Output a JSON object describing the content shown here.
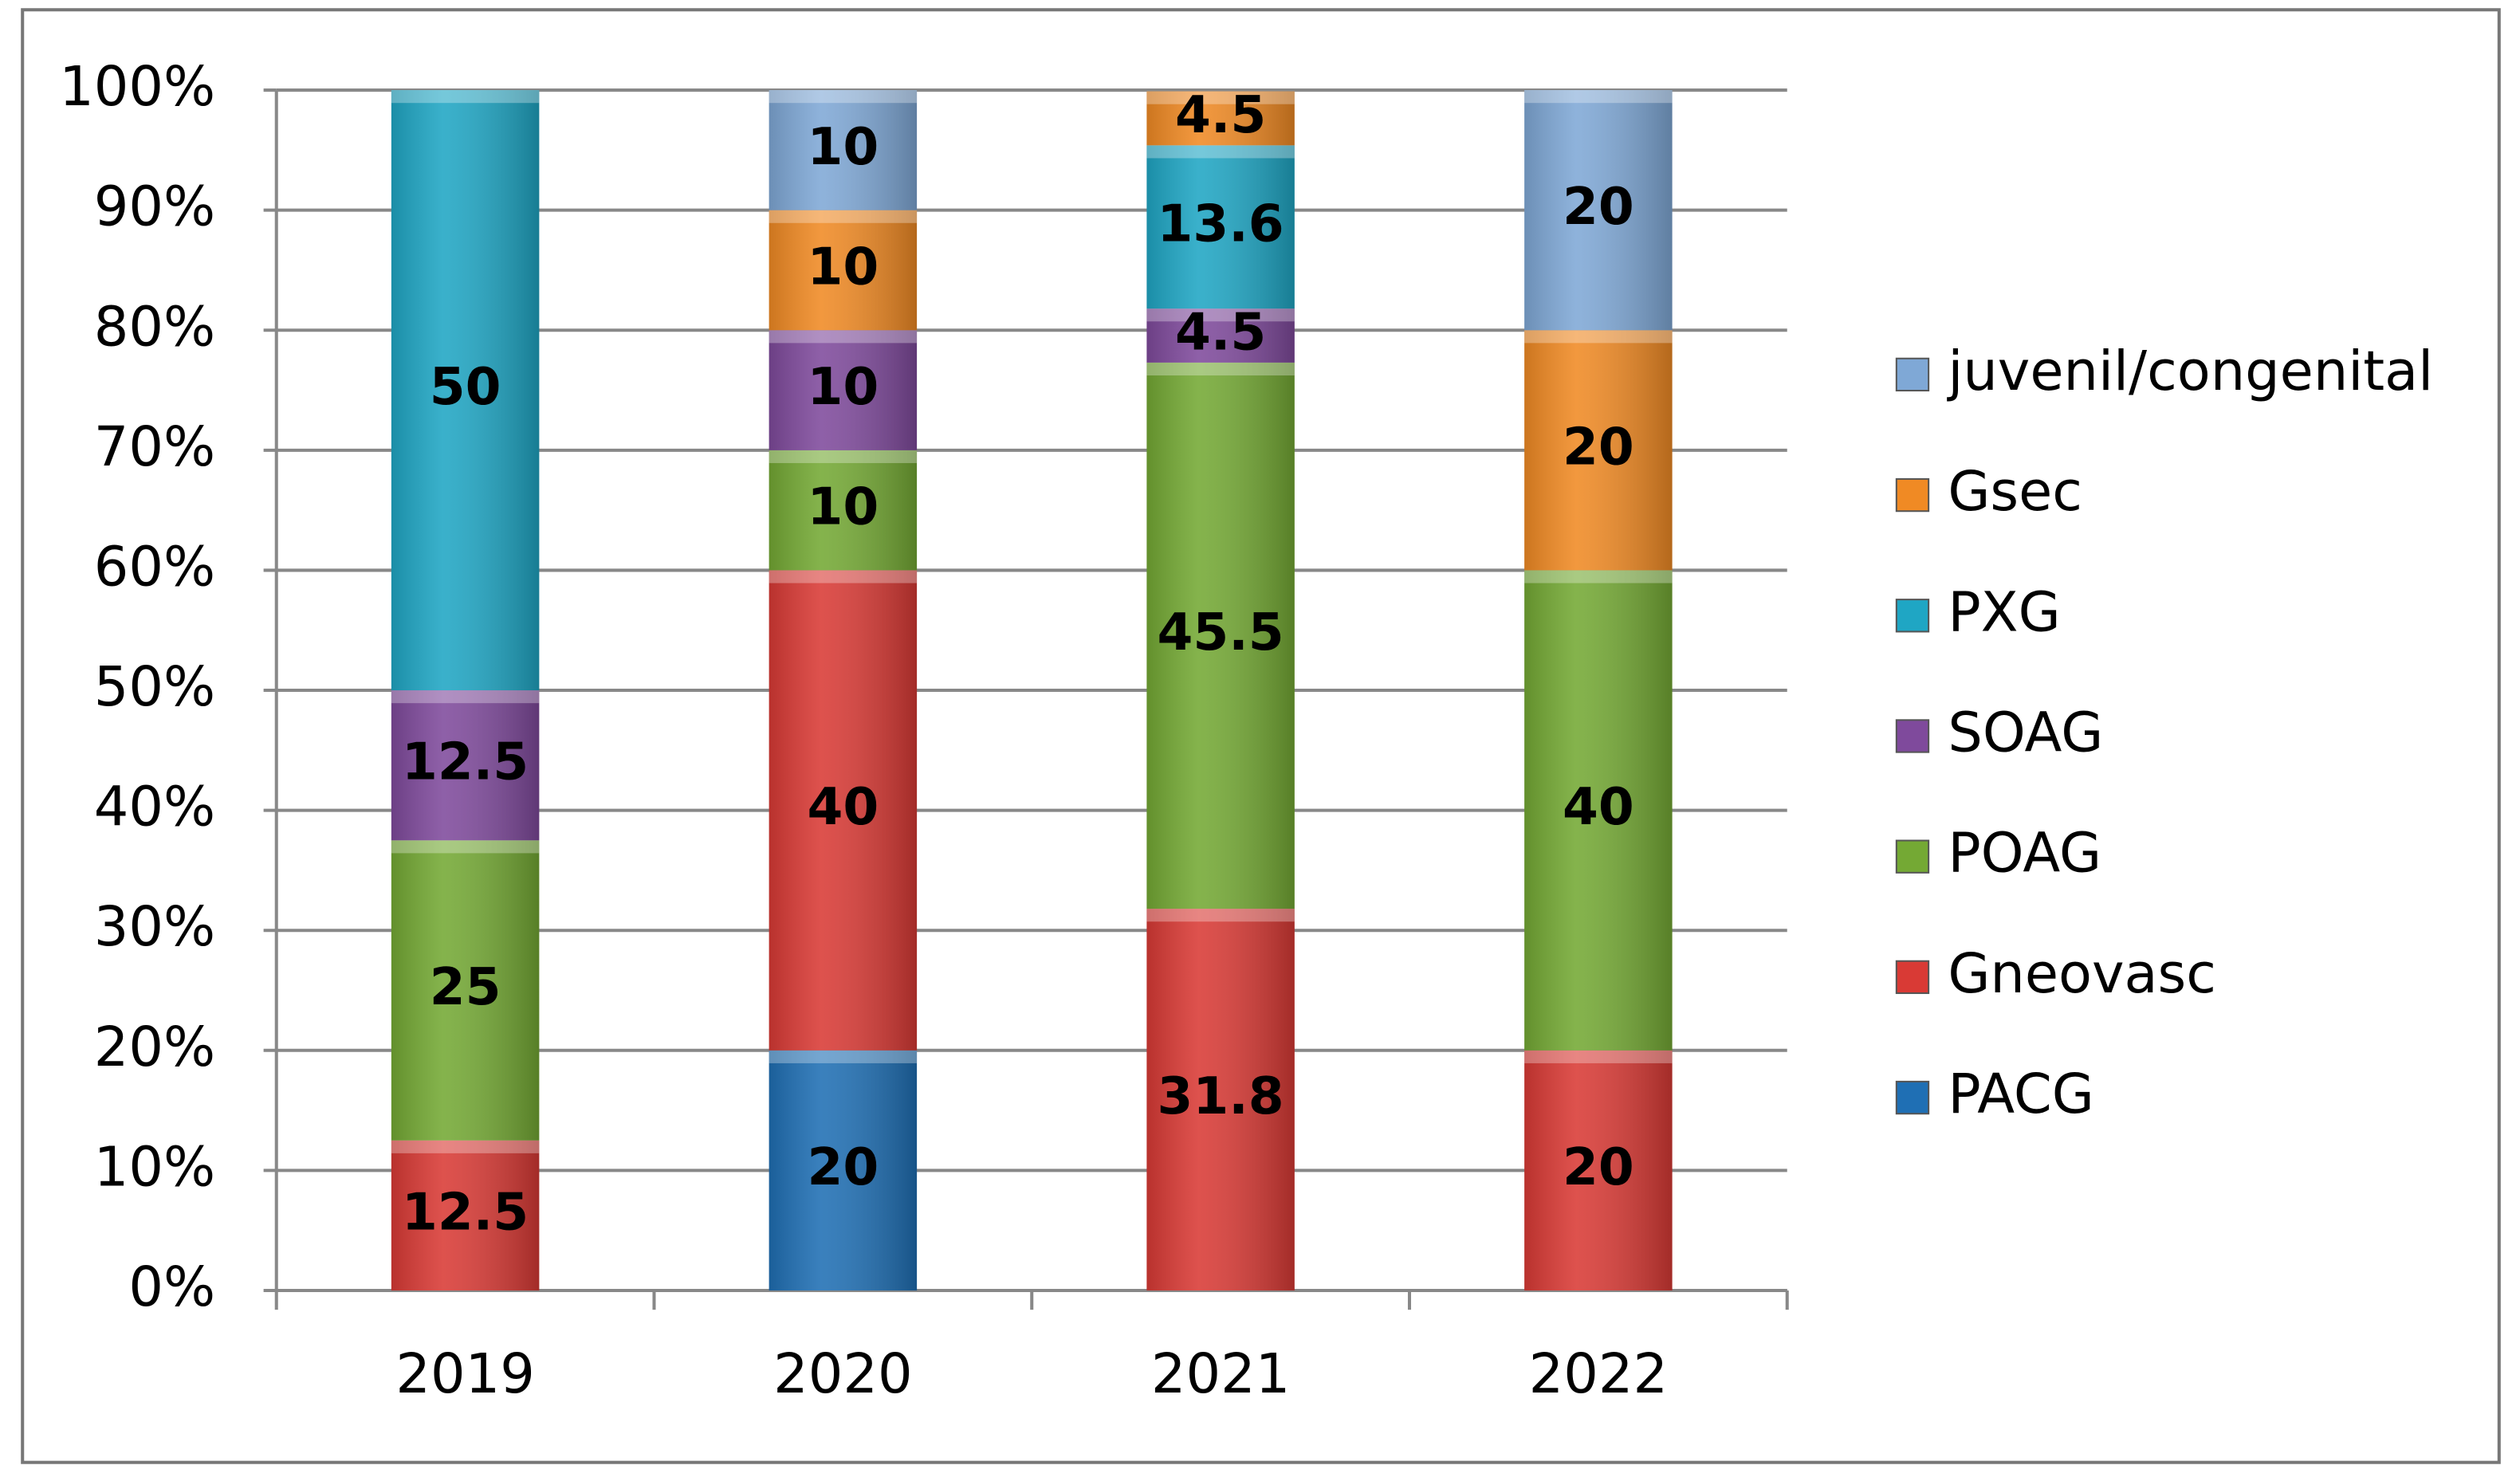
{
  "chart_data": {
    "type": "stacked_bar",
    "categories": [
      "2019",
      "2020",
      "2021",
      "2022"
    ],
    "series": [
      {
        "name": "PACG",
        "color": "#1f6fb4",
        "values": [
          null,
          20,
          null,
          null
        ]
      },
      {
        "name": "Gneovasc",
        "color": "#d93a35",
        "values": [
          12.5,
          40,
          31.8,
          20
        ]
      },
      {
        "name": "POAG",
        "color": "#74a934",
        "values": [
          25,
          10,
          45.5,
          40
        ]
      },
      {
        "name": "SOAG",
        "color": "#7f4a9c",
        "values": [
          12.5,
          10,
          4.5,
          null
        ]
      },
      {
        "name": "PXG",
        "color": "#1fa6c4",
        "values": [
          50,
          null,
          13.6,
          null
        ]
      },
      {
        "name": "Gsec",
        "color": "#f08a24",
        "values": [
          null,
          10,
          4.5,
          20
        ]
      },
      {
        "name": "juvenil/congenital",
        "color": "#7fa8d6",
        "values": [
          null,
          10,
          null,
          20
        ]
      }
    ],
    "ylim": [
      0,
      100
    ],
    "yticks": [
      {
        "value": 0,
        "label": "0%"
      },
      {
        "value": 10,
        "label": "10%"
      },
      {
        "value": 20,
        "label": "20%"
      },
      {
        "value": 30,
        "label": "30%"
      },
      {
        "value": 40,
        "label": "40%"
      },
      {
        "value": 50,
        "label": "50%"
      },
      {
        "value": 60,
        "label": "60%"
      },
      {
        "value": 70,
        "label": "70%"
      },
      {
        "value": 80,
        "label": "80%"
      },
      {
        "value": 90,
        "label": "90%"
      },
      {
        "value": 100,
        "label": "100%"
      }
    ],
    "grid": true,
    "legend": "right"
  }
}
